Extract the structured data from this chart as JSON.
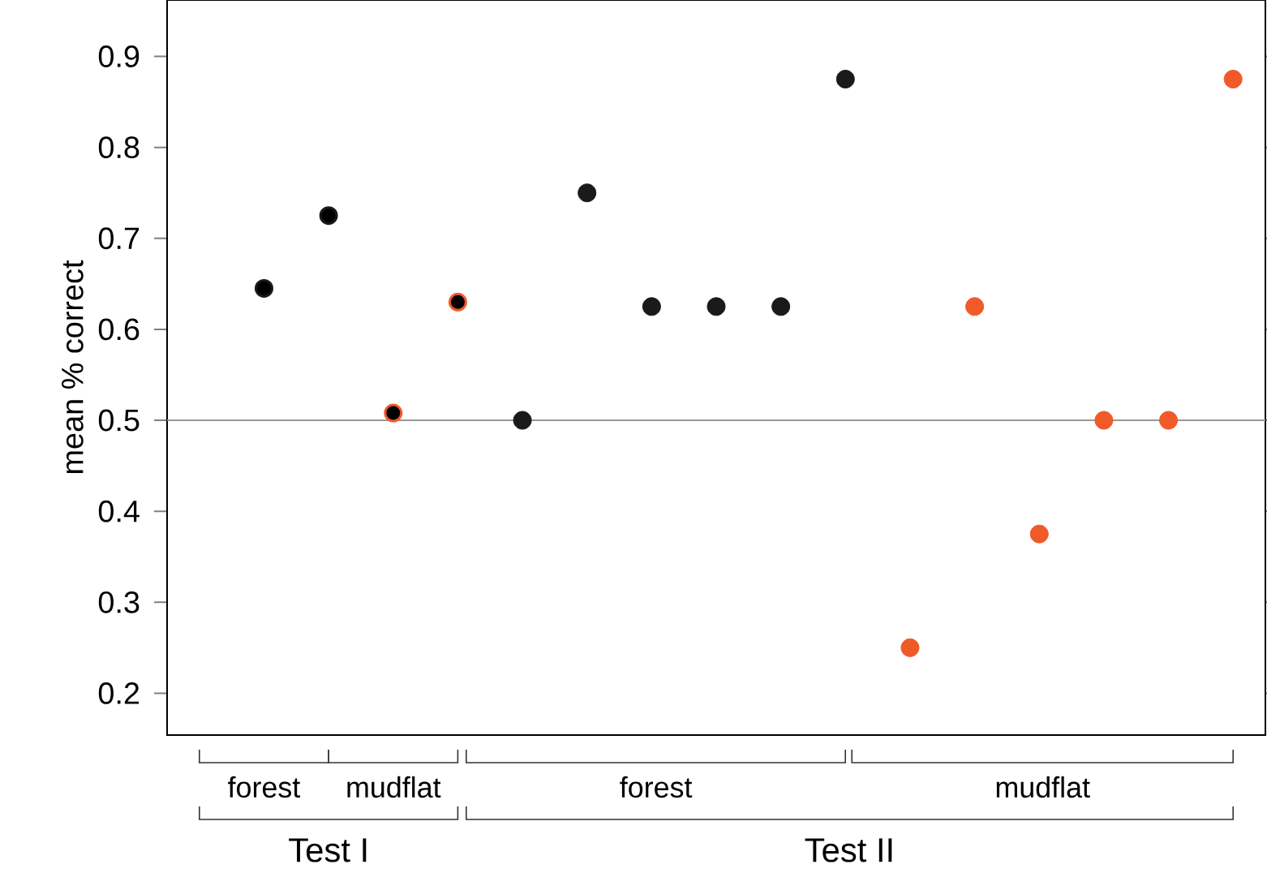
{
  "chart_data": {
    "type": "scatter",
    "ylabel": "mean % correct",
    "categories": [
      null,
      null,
      null,
      null,
      null,
      null,
      null,
      null,
      null,
      null,
      null,
      null,
      null,
      null,
      null,
      null,
      null
    ],
    "series": [
      {
        "color": "#1a1a1a",
        "values": [
          null,
          0.645,
          0.725,
          null,
          null,
          null,
          null,
          null,
          null,
          null,
          null,
          null,
          null,
          null,
          null,
          null,
          null
        ]
      },
      {
        "color": "#f05a28",
        "values": [
          null,
          null,
          null,
          0.508,
          0.63,
          null,
          null,
          null,
          null,
          null,
          null,
          null,
          null,
          null,
          null,
          null,
          null
        ]
      },
      {
        "color": "#1a1a1a",
        "values": [
          null,
          null,
          null,
          null,
          null,
          0.5,
          0.75,
          0.625,
          0.625,
          0.625,
          0.875,
          null,
          null,
          null,
          null,
          null,
          null
        ]
      },
      {
        "color": "#f05a28",
        "values": [
          null,
          null,
          null,
          null,
          null,
          null,
          null,
          null,
          null,
          null,
          null,
          0.25,
          0.625,
          0.375,
          0.5,
          0.5,
          0.875
        ]
      }
    ],
    "ylim": [
      0.154,
      0.962
    ],
    "yticks": [
      0.2,
      0.3,
      0.4,
      0.5,
      0.6,
      0.7,
      0.8,
      0.9
    ],
    "ref_lines": [
      {
        "axis": "y",
        "value": 0.5,
        "color": "#999999"
      }
    ],
    "marker": "circle",
    "tick_labels": "y",
    "annotations": [
      "forest",
      "mudflat",
      "forest",
      "mudflat",
      "Test I",
      "Test II"
    ]
  }
}
